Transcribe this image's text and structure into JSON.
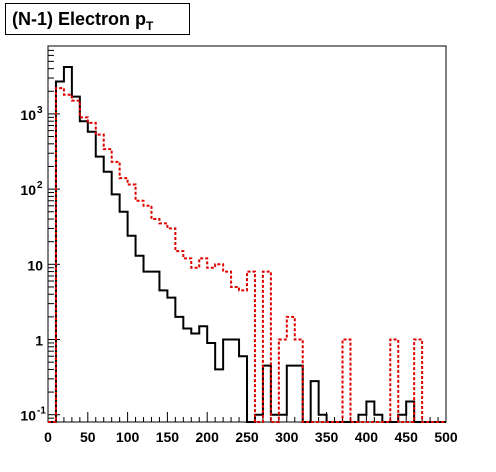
{
  "title": {
    "main": "(N-1) Electron p",
    "subscript": "T"
  },
  "chart_data": {
    "type": "histogram",
    "title": "(N-1) Electron p_T",
    "xlabel": "",
    "ylabel": "",
    "xlim": [
      0,
      500
    ],
    "ylim": [
      0.08,
      8000
    ],
    "y_scale": "log",
    "bin_width": 10,
    "x_ticks": [
      0,
      50,
      100,
      150,
      200,
      250,
      300,
      350,
      400,
      450,
      500
    ],
    "x_tick_labels": [
      "0",
      "50",
      "100",
      "150",
      "200",
      "250",
      "300",
      "350",
      "400",
      "450",
      "500"
    ],
    "y_ticks": [
      0.1,
      1,
      10,
      100,
      1000
    ],
    "y_tick_labels": [
      {
        "base": "10",
        "exp": "-1"
      },
      {
        "base": "1",
        "exp": ""
      },
      {
        "base": "10",
        "exp": ""
      },
      {
        "base": "10",
        "exp": "2"
      },
      {
        "base": "10",
        "exp": "3"
      }
    ],
    "grid": false,
    "series": [
      {
        "style": "solid",
        "color": "#000000",
        "values": [
          0.08,
          2700,
          4200,
          1700,
          800,
          580,
          270,
          170,
          85,
          50,
          24,
          13,
          8,
          8,
          4.5,
          3.6,
          2,
          1.4,
          1.2,
          1.5,
          0.9,
          0.4,
          1.0,
          1.0,
          0.6,
          0.08,
          0.1,
          0.45,
          0.1,
          0.1,
          0.45,
          0.45,
          0.08,
          0.28,
          0.1,
          0.08,
          0.08,
          0.08,
          0.08,
          0.1,
          0.15,
          0.1,
          0.08,
          0.08,
          0.1,
          0.15,
          0.08,
          0.08,
          0.08,
          0.08
        ]
      },
      {
        "style": "dashed",
        "color": "#dd0000",
        "values": [
          0.08,
          2200,
          1800,
          1500,
          900,
          760,
          530,
          340,
          230,
          140,
          115,
          70,
          60,
          40,
          35,
          30,
          15,
          12,
          9,
          12,
          9,
          10,
          8,
          5,
          4.5,
          8,
          0.08,
          8,
          0.08,
          1.0,
          2.0,
          1.0,
          0.08,
          0.08,
          0.08,
          0.08,
          0.08,
          1.0,
          0.08,
          0.08,
          0.08,
          0.08,
          0.08,
          1.0,
          0.08,
          0.08,
          1.0,
          0.08,
          0.08,
          0.08
        ]
      }
    ]
  }
}
